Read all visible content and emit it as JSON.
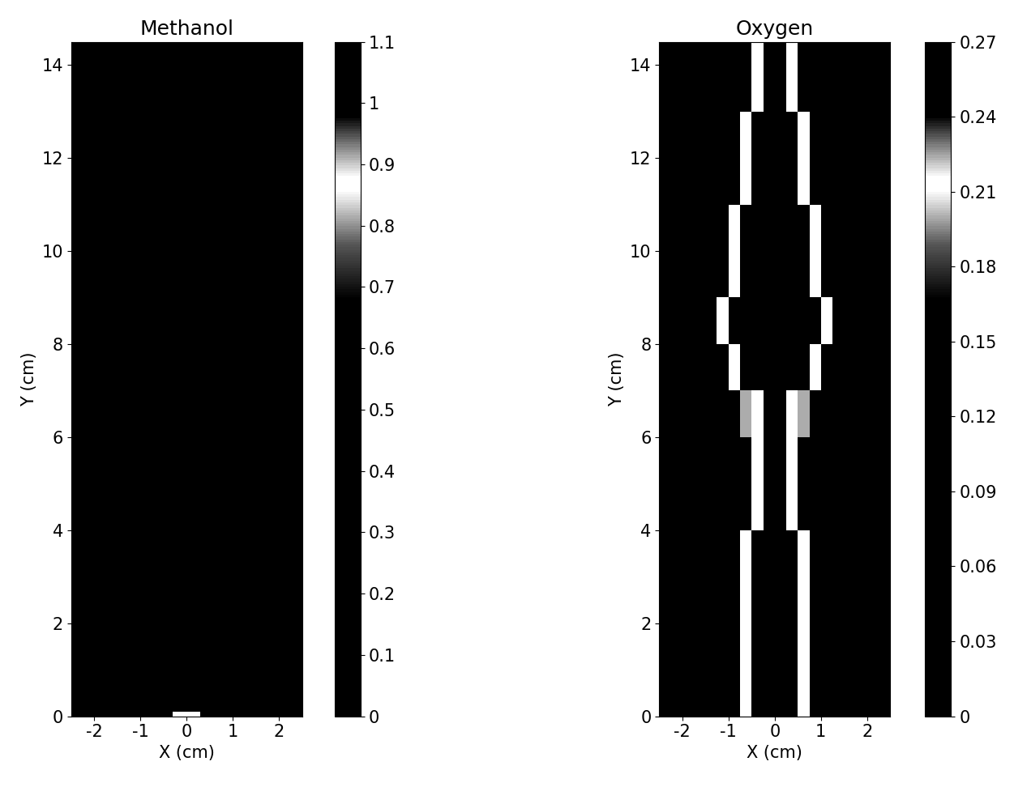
{
  "chart_data": [
    {
      "type": "heatmap",
      "title": "Methanol",
      "xlabel": "X (cm)",
      "ylabel": "Y (cm)",
      "xlim": [
        -2.5,
        2.5
      ],
      "ylim": [
        0,
        14.5
      ],
      "xticks": [
        -2,
        -1,
        0,
        1,
        2
      ],
      "yticks": [
        0,
        2,
        4,
        6,
        8,
        10,
        12,
        14
      ],
      "x_edges": [
        -2.5,
        -0.3,
        0.3,
        2.5
      ],
      "y_edges": [
        0,
        0.1,
        14.5
      ],
      "cells": [
        [
          0,
          0.86,
          0
        ],
        [
          0,
          0,
          0
        ]
      ],
      "colorbar_range": [
        0,
        1.1
      ],
      "colorbar_ticks": [
        0,
        0.1,
        0.2,
        0.3,
        0.4,
        0.5,
        0.6,
        0.7,
        0.8,
        0.9,
        1,
        1.1
      ]
    },
    {
      "type": "heatmap",
      "title": "Oxygen",
      "xlabel": "X (cm)",
      "ylabel": "Y (cm)",
      "xlim": [
        -2.5,
        2.5
      ],
      "ylim": [
        0,
        14.5
      ],
      "xticks": [
        -2,
        -1,
        0,
        1,
        2
      ],
      "yticks": [
        0,
        2,
        4,
        6,
        8,
        10,
        12,
        14
      ],
      "x_edges": [
        -2.5,
        -2.25,
        -2.0,
        -1.75,
        -1.5,
        -1.25,
        -1.0,
        -0.75,
        -0.5,
        -0.25,
        0,
        0.25,
        0.5,
        0.75,
        1.0,
        1.25,
        1.5,
        1.75,
        2.0,
        2.25,
        2.5
      ],
      "y_edges": [
        0,
        1,
        2,
        3,
        4,
        5,
        6,
        7,
        8,
        9,
        10,
        11,
        12,
        13,
        14,
        14.5
      ],
      "cells": [
        [
          0,
          0,
          0,
          0,
          0,
          0,
          0,
          0.21,
          0,
          0,
          0,
          0,
          0.21,
          0,
          0,
          0,
          0,
          0,
          0,
          0
        ],
        [
          0,
          0,
          0,
          0,
          0,
          0,
          0,
          0.21,
          0,
          0,
          0,
          0,
          0.21,
          0,
          0,
          0,
          0,
          0,
          0,
          0
        ],
        [
          0,
          0,
          0,
          0,
          0,
          0,
          0,
          0.21,
          0,
          0,
          0,
          0,
          0.21,
          0,
          0,
          0,
          0,
          0,
          0,
          0
        ],
        [
          0,
          0,
          0,
          0,
          0,
          0,
          0,
          0.21,
          0,
          0,
          0,
          0,
          0.21,
          0,
          0,
          0,
          0,
          0,
          0,
          0
        ],
        [
          0,
          0,
          0,
          0,
          0,
          0,
          0,
          0,
          0.21,
          0,
          0,
          0.21,
          0,
          0,
          0,
          0,
          0,
          0,
          0,
          0
        ],
        [
          0,
          0,
          0,
          0,
          0,
          0,
          0,
          0,
          0.21,
          0,
          0,
          0.21,
          0,
          0,
          0,
          0,
          0,
          0,
          0,
          0
        ],
        [
          0,
          0,
          0,
          0,
          0,
          0,
          0,
          0.2,
          0.21,
          0,
          0,
          0.21,
          0.2,
          0,
          0,
          0,
          0,
          0,
          0,
          0
        ],
        [
          0,
          0,
          0,
          0,
          0,
          0,
          0.21,
          0,
          0,
          0,
          0,
          0,
          0,
          0.21,
          0,
          0,
          0,
          0,
          0,
          0
        ],
        [
          0,
          0,
          0,
          0,
          0,
          0.21,
          0,
          0,
          0,
          0,
          0,
          0,
          0,
          0,
          0.21,
          0,
          0,
          0,
          0,
          0
        ],
        [
          0,
          0,
          0,
          0,
          0,
          0,
          0.21,
          0,
          0,
          0,
          0,
          0,
          0,
          0.21,
          0,
          0,
          0,
          0,
          0,
          0
        ],
        [
          0,
          0,
          0,
          0,
          0,
          0,
          0.21,
          0,
          0,
          0,
          0,
          0,
          0,
          0.21,
          0,
          0,
          0,
          0,
          0,
          0
        ],
        [
          0,
          0,
          0,
          0,
          0,
          0,
          0,
          0.21,
          0,
          0,
          0,
          0,
          0.21,
          0,
          0,
          0,
          0,
          0,
          0,
          0
        ],
        [
          0,
          0,
          0,
          0,
          0,
          0,
          0,
          0.21,
          0,
          0,
          0,
          0,
          0.21,
          0,
          0,
          0,
          0,
          0,
          0,
          0
        ],
        [
          0,
          0,
          0,
          0,
          0,
          0,
          0,
          0,
          0.21,
          0,
          0,
          0.21,
          0,
          0,
          0,
          0,
          0,
          0,
          0,
          0
        ],
        [
          0,
          0,
          0,
          0,
          0,
          0,
          0,
          0,
          0.21,
          0,
          0,
          0.21,
          0,
          0,
          0,
          0,
          0,
          0,
          0,
          0
        ]
      ],
      "colorbar_range": [
        0,
        0.27
      ],
      "colorbar_ticks": [
        0,
        0.03,
        0.06,
        0.09,
        0.12,
        0.15,
        0.18,
        0.21,
        0.24,
        0.27
      ]
    }
  ]
}
